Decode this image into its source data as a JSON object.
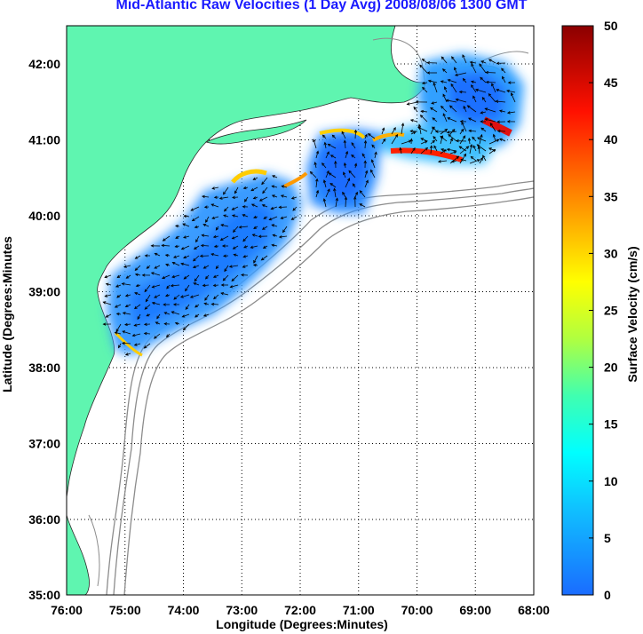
{
  "title": "Mid-Atlantic Raw Velocities (1 Day Avg) 2008/08/06 1300 GMT",
  "xlabel": "Longitude (Degrees:Minutes)",
  "ylabel": "Latitude (Degrees:Minutes",
  "colorbar_label": "Surface Velocity (cm/s)",
  "x_ticks": [
    "76:00",
    "75:00",
    "74:00",
    "73:00",
    "72:00",
    "71:00",
    "70:00",
    "69:00",
    "68:00"
  ],
  "y_ticks": [
    "42:00",
    "41:00",
    "40:00",
    "39:00",
    "38:00",
    "37:00",
    "36:00",
    "35:00"
  ],
  "colorbar_ticks": [
    "50",
    "45",
    "40",
    "35",
    "30",
    "25",
    "20",
    "15",
    "10",
    "5",
    "0"
  ],
  "colors": {
    "land": "#5ff5b0",
    "title": "#1a1aff",
    "contour": "#8c8c8c"
  }
}
